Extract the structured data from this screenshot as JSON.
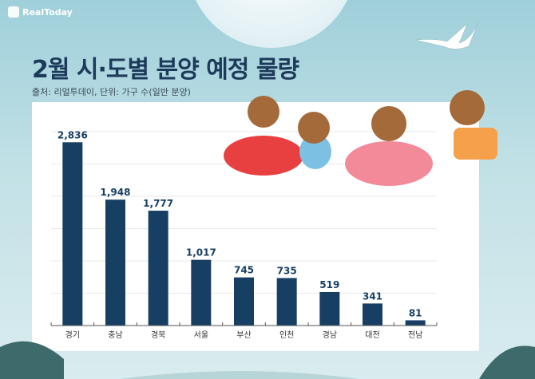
{
  "brand": "RealToday",
  "header": {
    "title": "2월 시·도별 분양 예정 물량",
    "subtitle": "출처: 리얼투데이, 단위: 가구 수(일반 분양)"
  },
  "colors": {
    "bar": "#173f63",
    "title": "#1d3a5a",
    "label": "#173f63"
  },
  "chart_data": {
    "type": "bar",
    "title": "2월 시·도별 분양 예정 물량",
    "xlabel": "",
    "ylabel": "",
    "categories": [
      "경기",
      "충남",
      "경북",
      "서울",
      "부산",
      "인천",
      "경남",
      "대전",
      "전남"
    ],
    "values": [
      2836,
      1948,
      1777,
      1017,
      745,
      735,
      519,
      341,
      81
    ],
    "value_labels": [
      "2,836",
      "1,948",
      "1,777",
      "1,017",
      "745",
      "735",
      "519",
      "341",
      "81"
    ],
    "ylim": [
      0,
      3000
    ],
    "grid": true,
    "legend": "none"
  }
}
